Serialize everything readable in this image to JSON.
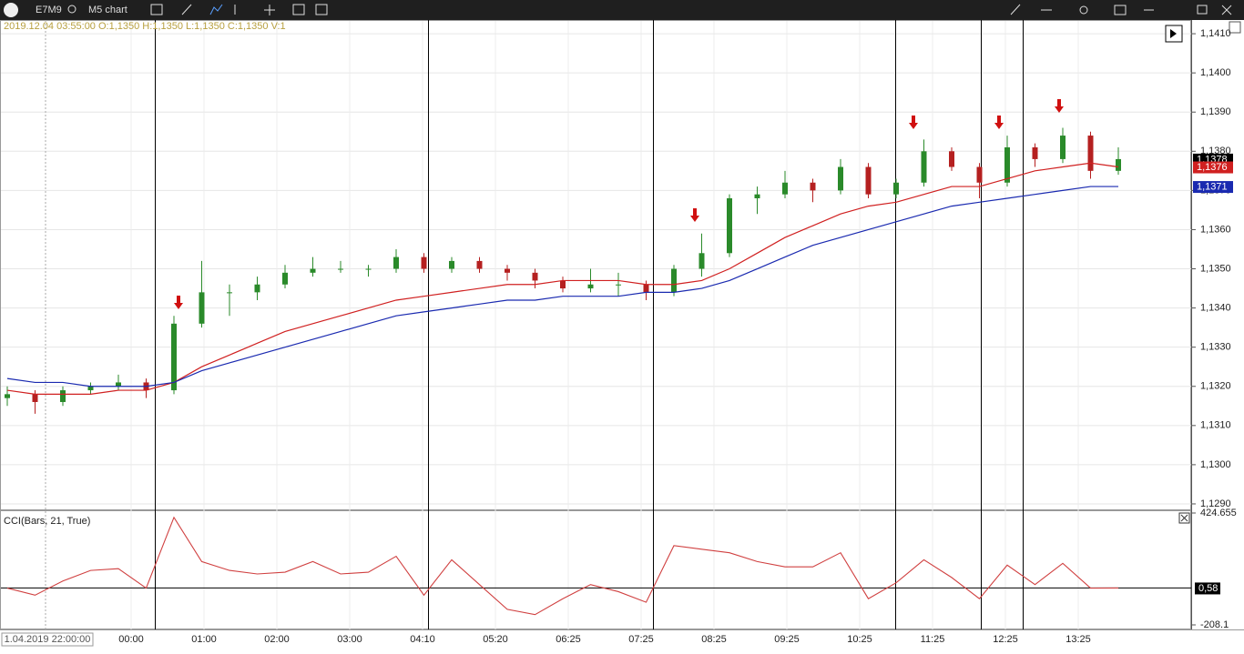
{
  "toolbar": {
    "symbol": "E7M9",
    "chart_name": "M5 chart"
  },
  "chart": {
    "info": "2019.12.04 03:55:00 O:1,1350 H:1,1350 L:1,1350 C:1,1350 V:1",
    "ylim": [
      1.12886,
      1.14135
    ],
    "yticks": [
      {
        "value": 1.141,
        "label": "1,1410"
      },
      {
        "value": 1.14,
        "label": "1,1400"
      },
      {
        "value": 1.139,
        "label": "1,1390"
      },
      {
        "value": 1.138,
        "label": "1,1380"
      },
      {
        "value": 1.137,
        "label": "1,1370"
      },
      {
        "value": 1.136,
        "label": "1,1360"
      },
      {
        "value": 1.135,
        "label": "1,1350"
      },
      {
        "value": 1.134,
        "label": "1,1340"
      },
      {
        "value": 1.133,
        "label": "1,1330"
      },
      {
        "value": 1.132,
        "label": "1,1320"
      },
      {
        "value": 1.131,
        "label": "1,1310"
      },
      {
        "value": 1.13,
        "label": "1,1300"
      },
      {
        "value": 1.129,
        "label": "1,1290"
      }
    ],
    "open": [
      1.1317,
      1.1318,
      1.1316,
      1.1319,
      1.132,
      1.1321,
      1.1319,
      1.1336,
      1.1344,
      1.1344,
      1.1346,
      1.1349,
      1.135,
      1.135,
      1.135,
      1.1353,
      1.135,
      1.1352,
      1.135,
      1.1349,
      1.1347,
      1.1345,
      1.1346,
      1.1346,
      1.1344,
      1.135,
      1.1354,
      1.1368,
      1.1369,
      1.1372,
      1.137,
      1.1376,
      1.1369,
      1.1372,
      1.138,
      1.1376,
      1.1372,
      1.1381,
      1.1378,
      1.1384,
      1.1375
    ],
    "high": [
      1.132,
      1.1319,
      1.132,
      1.1321,
      1.1323,
      1.1322,
      1.1338,
      1.1352,
      1.1346,
      1.1348,
      1.1351,
      1.1353,
      1.1352,
      1.1351,
      1.1355,
      1.1354,
      1.1353,
      1.1353,
      1.1351,
      1.135,
      1.1348,
      1.135,
      1.1349,
      1.1347,
      1.1351,
      1.1359,
      1.1369,
      1.1371,
      1.1375,
      1.1373,
      1.1378,
      1.1377,
      1.1373,
      1.1383,
      1.1381,
      1.1377,
      1.1384,
      1.1382,
      1.1386,
      1.1385,
      1.1381
    ],
    "low": [
      1.1315,
      1.1313,
      1.1315,
      1.1318,
      1.1319,
      1.1317,
      1.1318,
      1.1335,
      1.1338,
      1.1342,
      1.1345,
      1.1348,
      1.1349,
      1.1348,
      1.1349,
      1.1349,
      1.1349,
      1.1349,
      1.1347,
      1.1345,
      1.1344,
      1.1344,
      1.1343,
      1.1342,
      1.1343,
      1.1348,
      1.1353,
      1.1364,
      1.1368,
      1.1367,
      1.1369,
      1.1368,
      1.1368,
      1.1371,
      1.1375,
      1.1368,
      1.1371,
      1.1376,
      1.1377,
      1.1373,
      1.1374
    ],
    "close": [
      1.1318,
      1.1316,
      1.1319,
      1.132,
      1.1321,
      1.1319,
      1.1336,
      1.1344,
      1.1344,
      1.1346,
      1.1349,
      1.135,
      1.135,
      1.135,
      1.1353,
      1.135,
      1.1352,
      1.135,
      1.1349,
      1.1347,
      1.1345,
      1.1346,
      1.1346,
      1.1344,
      1.135,
      1.1354,
      1.1368,
      1.1369,
      1.1372,
      1.137,
      1.1376,
      1.1369,
      1.1372,
      1.138,
      1.1376,
      1.1372,
      1.1381,
      1.1378,
      1.1384,
      1.1375,
      1.1378
    ],
    "ma_fast": {
      "color": "#d02020",
      "values": [
        1.1319,
        1.1318,
        1.1318,
        1.1318,
        1.1319,
        1.1319,
        1.1321,
        1.1325,
        1.1328,
        1.1331,
        1.1334,
        1.1336,
        1.1338,
        1.134,
        1.1342,
        1.1343,
        1.1344,
        1.1345,
        1.1346,
        1.1346,
        1.1347,
        1.1347,
        1.1347,
        1.1346,
        1.1346,
        1.1347,
        1.135,
        1.1354,
        1.1358,
        1.1361,
        1.1364,
        1.1366,
        1.1367,
        1.1369,
        1.1371,
        1.1371,
        1.1373,
        1.1375,
        1.1376,
        1.1377,
        1.1376
      ]
    },
    "ma_slow": {
      "color": "#1a2ab0",
      "values": [
        1.1322,
        1.1321,
        1.1321,
        1.132,
        1.132,
        1.132,
        1.1321,
        1.1324,
        1.1326,
        1.1328,
        1.133,
        1.1332,
        1.1334,
        1.1336,
        1.1338,
        1.1339,
        1.134,
        1.1341,
        1.1342,
        1.1342,
        1.1343,
        1.1343,
        1.1343,
        1.1344,
        1.1344,
        1.1345,
        1.1347,
        1.135,
        1.1353,
        1.1356,
        1.1358,
        1.136,
        1.1362,
        1.1364,
        1.1366,
        1.1367,
        1.1368,
        1.1369,
        1.137,
        1.1371,
        1.1371
      ]
    },
    "price_labels": [
      {
        "value": 1.1378,
        "label": "1,1378",
        "color": "#000000"
      },
      {
        "value": 1.1376,
        "label": "1,1376",
        "color": "#d02020"
      },
      {
        "value": 1.1371,
        "label": "1,1371",
        "color": "#1a2ab0"
      }
    ]
  },
  "cci": {
    "title": "CCI(Bars, 21, True)",
    "ylim": [
      -233.8,
      434.9
    ],
    "yticks": [
      424.655,
      -208.1
    ],
    "level": {
      "value": 0.58,
      "label": "0,58"
    },
    "color": "#d04040",
    "values": [
      0,
      -40,
      40,
      100,
      110,
      0,
      400,
      150,
      100,
      80,
      90,
      150,
      80,
      90,
      180,
      -40,
      160,
      20,
      -120,
      -150,
      -60,
      20,
      -20,
      -80,
      240,
      220,
      200,
      150,
      120,
      120,
      200,
      -60,
      30,
      160,
      60,
      -60,
      130,
      20,
      140,
      0,
      0.58
    ]
  },
  "time_axis": {
    "labels": [
      "1.04.2019 22:00:00",
      "00:00",
      "01:00",
      "02:00",
      "03:00",
      "04:10",
      "05:20",
      "06:25",
      "07:25",
      "08:25",
      "09:25",
      "10:25",
      "11:25",
      "12:25",
      "13:25"
    ]
  }
}
